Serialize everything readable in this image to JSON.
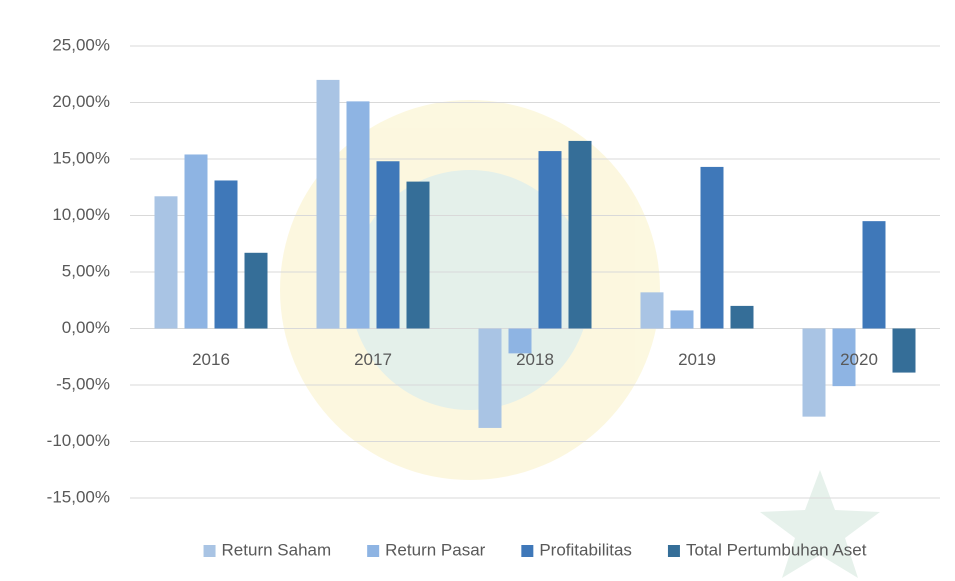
{
  "chart_data": {
    "type": "bar",
    "categories": [
      "2016",
      "2017",
      "2018",
      "2019",
      "2020"
    ],
    "series": [
      {
        "name": "Return Saham",
        "color": "#a9c4e4",
        "values": [
          11.7,
          22.0,
          -8.8,
          3.2,
          -7.8
        ]
      },
      {
        "name": "Return Pasar",
        "color": "#8eb4e3",
        "values": [
          15.4,
          20.1,
          -2.2,
          1.6,
          -5.1
        ]
      },
      {
        "name": "Profitabilitas",
        "color": "#3f78b9",
        "values": [
          13.1,
          14.8,
          15.7,
          14.3,
          9.5
        ]
      },
      {
        "name": "Total Pertumbuhan Aset",
        "color": "#356e98",
        "values": [
          6.7,
          13.0,
          16.6,
          2.0,
          -3.9
        ]
      }
    ],
    "ylim": [
      -15,
      25
    ],
    "yticks": [
      {
        "value": -15,
        "label": "-15,00%"
      },
      {
        "value": -10,
        "label": "-10,00%"
      },
      {
        "value": -5,
        "label": "-5,00%"
      },
      {
        "value": 0,
        "label": "0,00%"
      },
      {
        "value": 5,
        "label": "5,00%"
      },
      {
        "value": 10,
        "label": "10,00%"
      },
      {
        "value": 15,
        "label": "15,00%"
      },
      {
        "value": 20,
        "label": "20,00%"
      },
      {
        "value": 25,
        "label": "25,00%"
      }
    ],
    "grid": true,
    "legend": "bottom"
  }
}
